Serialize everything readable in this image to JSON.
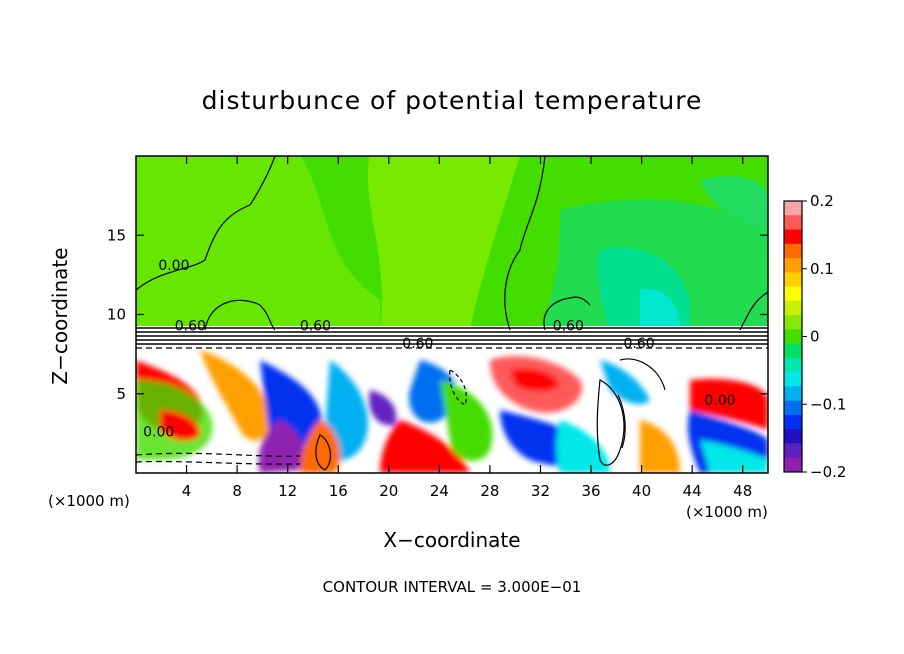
{
  "chart_data": {
    "type": "heatmap",
    "title": "disturbunce of potential temperature",
    "xlabel": "X−coordinate",
    "ylabel": "Z−coordinate",
    "x_unit_left": "(×1000 m)",
    "x_unit_right": "(×1000 m)",
    "xlim": [
      0,
      50
    ],
    "ylim": [
      0,
      20
    ],
    "x_ticks": [
      4,
      8,
      12,
      16,
      20,
      24,
      28,
      32,
      36,
      40,
      44,
      48
    ],
    "y_ticks": [
      5,
      10,
      15
    ],
    "colorbar": {
      "range": [
        -0.2,
        0.2
      ],
      "ticks": [
        "0.2",
        "0.1",
        "0",
        "−0.1",
        "−0.2"
      ],
      "tick_values": [
        0.2,
        0.1,
        0,
        -0.1,
        -0.2
      ],
      "colors": [
        "#f4a6a6",
        "#ff5a5a",
        "#ff0000",
        "#ff6a00",
        "#ff9f00",
        "#ffd000",
        "#ffff00",
        "#c8f000",
        "#88e800",
        "#44dd00",
        "#00e060",
        "#00e8b0",
        "#00e8e8",
        "#00b0f0",
        "#0070f0",
        "#0030f0",
        "#2010c0",
        "#6020c0",
        "#9020b0"
      ]
    },
    "contour_labels": [
      {
        "text": "0.00",
        "x": 3.0,
        "y": 12.8
      },
      {
        "text": "0.60",
        "x": 4.3,
        "y": 9.0
      },
      {
        "text": "0.60",
        "x": 14.2,
        "y": 9.0
      },
      {
        "text": "0.60",
        "x": 22.3,
        "y": 7.9
      },
      {
        "text": "0.60",
        "x": 34.2,
        "y": 9.0
      },
      {
        "text": "0.60",
        "x": 39.8,
        "y": 7.9
      },
      {
        "text": "0.00",
        "x": 1.8,
        "y": 2.3
      },
      {
        "text": "0.00",
        "x": 46.2,
        "y": 4.3
      }
    ],
    "contour_interval": "CONTOUR INTERVAL = 3.000E−01"
  }
}
